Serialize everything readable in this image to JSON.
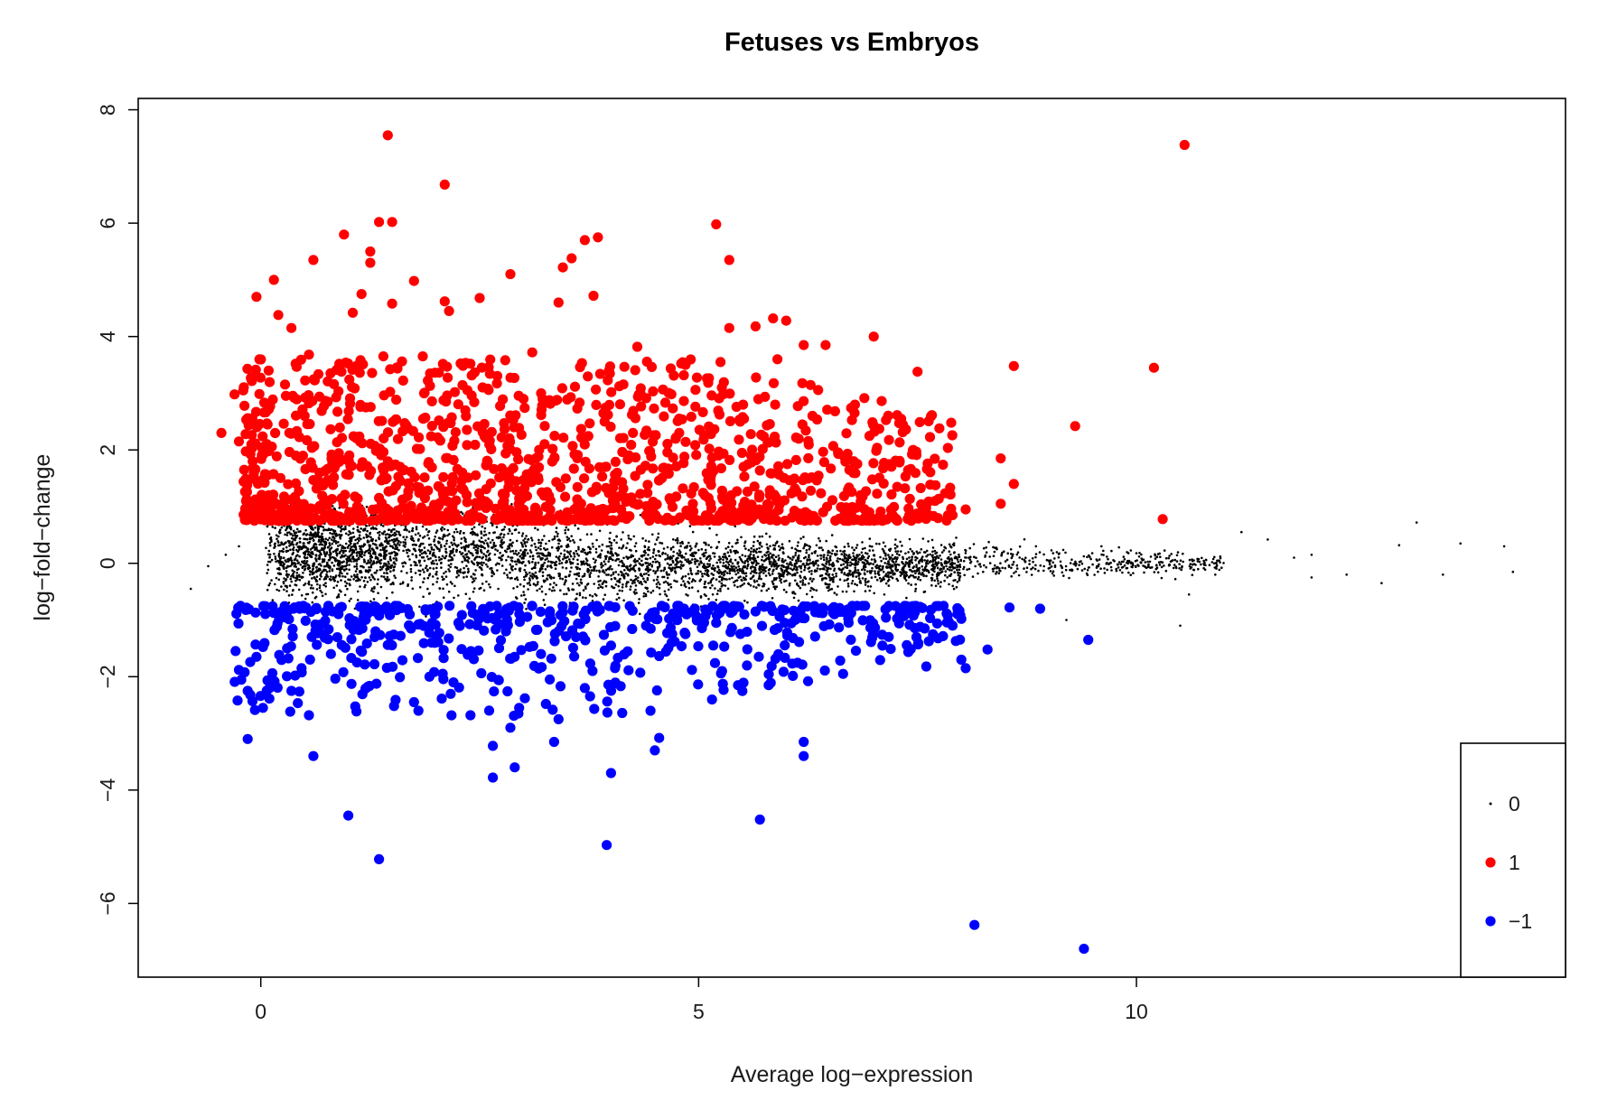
{
  "chart_data": {
    "type": "scatter",
    "title": "Fetuses vs Embryos",
    "xlabel": "Average log−expression",
    "ylabel": "log−fold−change",
    "xlim": [
      -1.4,
      14.9
    ],
    "ylim": [
      -7.3,
      8.2
    ],
    "xticks": [
      {
        "value": 0,
        "label": "0"
      },
      {
        "value": 5,
        "label": "5"
      },
      {
        "value": 10,
        "label": "10"
      }
    ],
    "yticks": [
      {
        "value": -6,
        "label": "−6"
      },
      {
        "value": -4,
        "label": "−4"
      },
      {
        "value": -2,
        "label": "−2"
      },
      {
        "value": 0,
        "label": "0"
      },
      {
        "value": 2,
        "label": "2"
      },
      {
        "value": 4,
        "label": "4"
      },
      {
        "value": 6,
        "label": "6"
      },
      {
        "value": 8,
        "label": "8"
      }
    ],
    "grid": false,
    "legend": {
      "position": "bottom-right",
      "entries": [
        {
          "label": "0",
          "status": 0,
          "color": "#000000"
        },
        {
          "label": "1",
          "status": 1,
          "color": "#ff0000"
        },
        {
          "label": "−1",
          "status": -1,
          "color": "#0000ff"
        }
      ]
    },
    "series": [
      {
        "status": 1,
        "color": "#ff0000",
        "points": [
          [
            1.45,
            7.55
          ],
          [
            10.55,
            7.38
          ],
          [
            2.1,
            6.68
          ],
          [
            1.35,
            6.02
          ],
          [
            1.5,
            6.02
          ],
          [
            5.2,
            5.98
          ],
          [
            0.95,
            5.8
          ],
          [
            3.85,
            5.75
          ],
          [
            3.7,
            5.7
          ],
          [
            1.25,
            5.5
          ],
          [
            0.6,
            5.35
          ],
          [
            1.25,
            5.3
          ],
          [
            5.35,
            5.35
          ],
          [
            3.55,
            5.38
          ],
          [
            3.45,
            5.22
          ],
          [
            0.15,
            5.0
          ],
          [
            1.75,
            4.98
          ],
          [
            2.85,
            5.1
          ],
          [
            1.15,
            4.75
          ],
          [
            2.5,
            4.68
          ],
          [
            3.8,
            4.72
          ],
          [
            -0.05,
            4.7
          ],
          [
            2.1,
            4.62
          ],
          [
            1.5,
            4.58
          ],
          [
            3.4,
            4.6
          ],
          [
            2.15,
            4.45
          ],
          [
            0.2,
            4.38
          ],
          [
            0.35,
            4.15
          ],
          [
            1.05,
            4.42
          ],
          [
            5.85,
            4.32
          ],
          [
            6.0,
            4.28
          ],
          [
            5.35,
            4.15
          ],
          [
            5.65,
            4.18
          ],
          [
            7.0,
            4.0
          ],
          [
            6.45,
            3.85
          ],
          [
            6.2,
            3.85
          ],
          [
            4.3,
            3.82
          ],
          [
            3.1,
            3.72
          ],
          [
            1.85,
            3.65
          ],
          [
            1.4,
            3.65
          ],
          [
            0.55,
            3.68
          ],
          [
            8.6,
            3.48
          ],
          [
            10.2,
            3.45
          ],
          [
            7.5,
            3.38
          ],
          [
            5.25,
            3.55
          ],
          [
            5.9,
            3.6
          ],
          [
            4.85,
            3.5
          ],
          [
            -0.2,
            3.05
          ],
          [
            -0.3,
            2.98
          ],
          [
            -0.45,
            2.3
          ],
          [
            -0.25,
            2.15
          ],
          [
            0.5,
            2.6
          ],
          [
            9.3,
            2.42
          ],
          [
            7.75,
            2.38
          ],
          [
            8.45,
            1.85
          ],
          [
            8.6,
            1.4
          ],
          [
            8.45,
            1.05
          ],
          [
            10.3,
            0.78
          ],
          [
            7.9,
            0.85
          ],
          [
            8.05,
            0.95
          ],
          [
            7.7,
            1.1
          ],
          [
            7.1,
            0.75
          ],
          [
            6.85,
            1.2
          ],
          [
            0.1,
            1.05
          ],
          [
            0.4,
            1.9
          ],
          [
            1.2,
            2.75
          ],
          [
            2.3,
            1.6
          ],
          [
            3.0,
            2.9
          ],
          [
            4.25,
            2.3
          ],
          [
            5.6,
            1.9
          ],
          [
            6.3,
            2.6
          ],
          [
            7.45,
            2.0
          ]
        ]
      },
      {
        "status": -1,
        "color": "#0000ff",
        "points": [
          [
            -0.15,
            -3.1
          ],
          [
            0.55,
            -2.68
          ],
          [
            0.6,
            -3.4
          ],
          [
            1.0,
            -4.45
          ],
          [
            1.35,
            -5.22
          ],
          [
            3.95,
            -4.97
          ],
          [
            5.7,
            -4.52
          ],
          [
            8.15,
            -6.38
          ],
          [
            9.4,
            -6.8
          ],
          [
            9.45,
            -1.35
          ],
          [
            8.9,
            -0.8
          ],
          [
            4.0,
            -3.7
          ],
          [
            2.65,
            -3.78
          ],
          [
            2.9,
            -3.6
          ],
          [
            2.65,
            -3.22
          ],
          [
            3.35,
            -3.15
          ],
          [
            6.2,
            -3.15
          ],
          [
            6.2,
            -3.4
          ],
          [
            4.5,
            -3.3
          ],
          [
            4.55,
            -3.08
          ],
          [
            2.85,
            -2.9
          ],
          [
            3.4,
            -2.75
          ],
          [
            4.45,
            -2.6
          ],
          [
            2.95,
            -2.55
          ],
          [
            5.45,
            -2.15
          ],
          [
            5.8,
            -2.15
          ],
          [
            6.25,
            -2.08
          ],
          [
            6.65,
            -1.95
          ],
          [
            7.4,
            -1.55
          ],
          [
            7.6,
            -1.82
          ],
          [
            8.0,
            -1.7
          ],
          [
            8.05,
            -1.85
          ],
          [
            8.3,
            -1.52
          ],
          [
            8.0,
            -0.98
          ],
          [
            8.55,
            -0.78
          ],
          [
            -0.25,
            -1.88
          ],
          [
            -0.15,
            -2.25
          ],
          [
            0.1,
            -2.2
          ],
          [
            0.35,
            -2.25
          ],
          [
            1.75,
            -2.45
          ],
          [
            1.8,
            -2.6
          ],
          [
            -0.05,
            -1.65
          ],
          [
            0.3,
            -1.5
          ],
          [
            0.8,
            -1.6
          ],
          [
            1.1,
            -1.75
          ],
          [
            1.3,
            -1.3
          ],
          [
            1.95,
            -1.4
          ],
          [
            2.4,
            -1.55
          ],
          [
            2.8,
            -1.2
          ],
          [
            3.2,
            -1.6
          ],
          [
            3.6,
            -1.3
          ],
          [
            4.0,
            -1.45
          ],
          [
            4.4,
            -1.1
          ],
          [
            4.85,
            -1.25
          ],
          [
            5.2,
            -1.05
          ],
          [
            5.65,
            -0.85
          ],
          [
            6.1,
            -1.0
          ],
          [
            6.55,
            -0.9
          ],
          [
            7.0,
            -1.15
          ],
          [
            7.9,
            -1.1
          ],
          [
            3.3,
            -2.05
          ],
          [
            3.7,
            -2.2
          ],
          [
            2.2,
            -2.1
          ]
        ]
      },
      {
        "status": 0,
        "color": "#000000",
        "points": [
          [
            -0.8,
            -0.45
          ],
          [
            -0.6,
            -0.05
          ],
          [
            -0.4,
            0.15
          ],
          [
            -0.25,
            0.3
          ],
          [
            11.2,
            0.55
          ],
          [
            11.5,
            0.42
          ],
          [
            12.0,
            0.15
          ],
          [
            12.4,
            -0.2
          ],
          [
            13.0,
            0.32
          ],
          [
            13.2,
            0.72
          ],
          [
            13.7,
            0.35
          ],
          [
            14.2,
            0.3
          ],
          [
            13.5,
            -0.2
          ],
          [
            14.3,
            -0.15
          ],
          [
            12.8,
            -0.35
          ],
          [
            10.6,
            -0.55
          ],
          [
            10.5,
            -1.1
          ],
          [
            9.2,
            -1.0
          ],
          [
            9.6,
            0.3
          ],
          [
            10.9,
            -0.2
          ],
          [
            12.0,
            -0.25
          ],
          [
            11.8,
            0.1
          ]
        ]
      }
    ],
    "generated_points": [
      {
        "status": 0,
        "color": "#000000",
        "count": 4500,
        "x_range": [
          0.05,
          11.0
        ],
        "y_center": 0.1,
        "y_spread": 1.0
      },
      {
        "status": 1,
        "color": "#ff0000",
        "count": 1250,
        "x_range": [
          -0.2,
          7.9
        ],
        "y_range": [
          0.75,
          3.6
        ]
      },
      {
        "status": -1,
        "color": "#0000ff",
        "count": 520,
        "x_range": [
          -0.3,
          8.0
        ],
        "y_range": [
          -2.7,
          -0.75
        ]
      }
    ]
  }
}
